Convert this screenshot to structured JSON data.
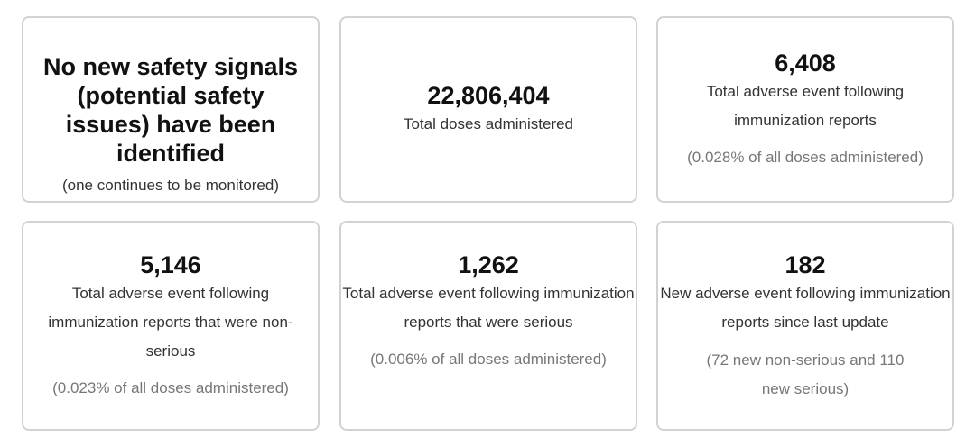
{
  "cards": [
    {
      "headline": "No new safety signals (potential safety issues) have been identified",
      "note": "(one continues to be monitored)"
    },
    {
      "value": "22,806,404",
      "label": "Total doses administered"
    },
    {
      "value": "6,408",
      "label": "Total adverse event following immunization reports",
      "note": "(0.028% of all doses administered)"
    },
    {
      "value": "5,146",
      "label": "Total adverse event following immunization reports that were non-serious",
      "note": "(0.023% of all doses administered)"
    },
    {
      "value": "1,262",
      "label": "Total adverse event following immunization reports that were serious",
      "note": "(0.006% of all doses administered)"
    },
    {
      "value": "182",
      "label": "New adverse event following immunization reports since last update",
      "note": "(72 new non-serious and 110 new serious)"
    }
  ]
}
